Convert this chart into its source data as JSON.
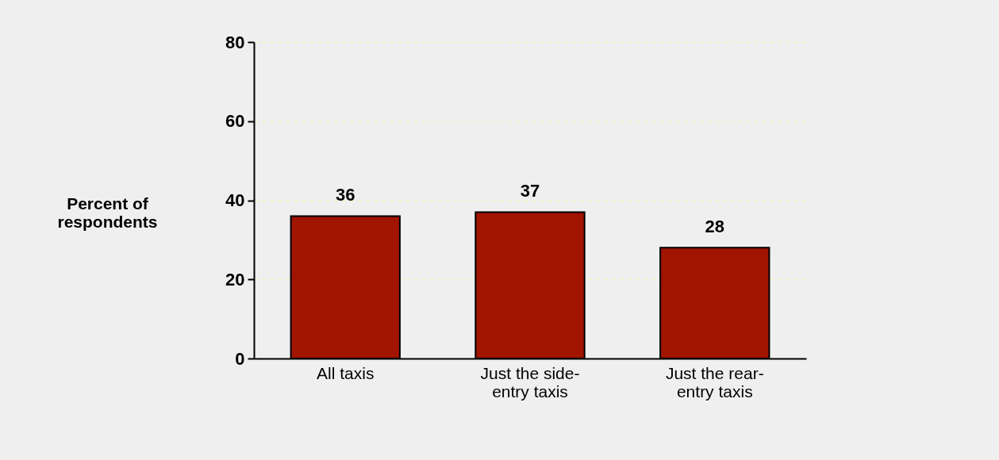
{
  "chart_data": {
    "type": "bar",
    "ylabel": "Percent of respondents",
    "categories": [
      "All taxis",
      "Just the side-entry taxis",
      "Just the rear-entry taxis"
    ],
    "values": [
      36,
      37,
      28
    ],
    "color": "#a01400",
    "ylim": [
      0,
      80
    ],
    "yticks": [
      0,
      20,
      40,
      60,
      80
    ],
    "grid": "y",
    "data_labels": true
  }
}
